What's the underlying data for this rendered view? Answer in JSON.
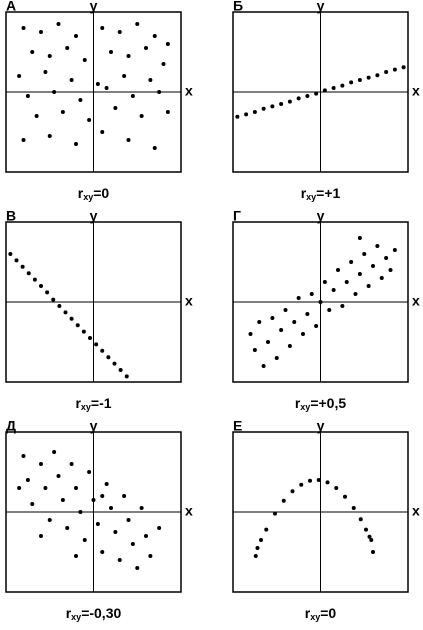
{
  "chart_data": [
    {
      "type": "scatter",
      "label": "А",
      "x_label": "x",
      "y_label": "y",
      "caption": {
        "r": "r",
        "sub": "xy",
        "value": "=0"
      },
      "color": "#000000",
      "xlim": [
        -1,
        1
      ],
      "ylim": [
        -1,
        1
      ],
      "x": [
        -0.8,
        -0.6,
        -0.4,
        -0.2,
        0.1,
        0.3,
        0.5,
        0.7,
        0.85,
        -0.7,
        -0.5,
        -0.3,
        -0.1,
        0.2,
        0.4,
        0.6,
        0.8,
        -0.85,
        -0.55,
        -0.25,
        0.05,
        0.35,
        0.65,
        -0.75,
        -0.45,
        -0.15,
        0.15,
        0.45,
        0.75,
        -0.65,
        -0.35,
        -0.05,
        0.25,
        0.55,
        0.85,
        -0.8,
        -0.5,
        -0.2,
        0.1,
        0.4,
        0.7
      ],
      "y": [
        0.8,
        0.75,
        0.85,
        0.7,
        0.8,
        0.75,
        0.85,
        0.7,
        0.6,
        0.5,
        0.45,
        0.55,
        0.4,
        0.5,
        0.45,
        0.55,
        0.35,
        0.2,
        0.25,
        0.15,
        0.1,
        0.2,
        0.15,
        -0.05,
        0,
        -0.1,
        0.05,
        -0.05,
        0,
        -0.3,
        -0.25,
        -0.35,
        -0.2,
        -0.3,
        -0.25,
        -0.6,
        -0.55,
        -0.65,
        -0.5,
        -0.6,
        -0.7
      ]
    },
    {
      "type": "scatter",
      "label": "Б",
      "x_label": "x",
      "y_label": "y",
      "caption": {
        "r": "r",
        "sub": "xy",
        "value": "=+1"
      },
      "color": "#000000",
      "xlim": [
        -1,
        1
      ],
      "ylim": [
        -1,
        1
      ],
      "x": [
        -0.95,
        -0.85,
        -0.75,
        -0.65,
        -0.55,
        -0.45,
        -0.35,
        -0.25,
        -0.15,
        -0.05,
        0.05,
        0.15,
        0.25,
        0.35,
        0.45,
        0.55,
        0.65,
        0.75,
        0.85,
        0.95
      ],
      "y": [
        -0.31,
        -0.28,
        -0.25,
        -0.21,
        -0.18,
        -0.15,
        -0.12,
        -0.08,
        -0.05,
        -0.02,
        0.02,
        0.05,
        0.08,
        0.12,
        0.15,
        0.18,
        0.21,
        0.25,
        0.28,
        0.31
      ]
    },
    {
      "type": "scatter",
      "label": "В",
      "x_label": "x",
      "y_label": "y",
      "caption": {
        "r": "r",
        "sub": "xy",
        "value": "=-1"
      },
      "color": "#000000",
      "xlim": [
        -1,
        1
      ],
      "ylim": [
        -1,
        1
      ],
      "x": [
        -0.95,
        -0.88,
        -0.81,
        -0.74,
        -0.67,
        -0.6,
        -0.53,
        -0.46,
        -0.39,
        -0.32,
        -0.25,
        -0.18,
        -0.11,
        -0.04,
        0.03,
        0.1,
        0.17,
        0.24,
        0.31,
        0.38
      ],
      "y": [
        0.6,
        0.52,
        0.44,
        0.36,
        0.28,
        0.2,
        0.12,
        0.03,
        -0.05,
        -0.13,
        -0.21,
        -0.29,
        -0.37,
        -0.45,
        -0.53,
        -0.61,
        -0.69,
        -0.77,
        -0.85,
        -0.93
      ]
    },
    {
      "type": "scatter",
      "label": "Г",
      "x_label": "x",
      "y_label": "y",
      "caption": {
        "r": "r",
        "sub": "xy",
        "value": "=+0,5"
      },
      "color": "#000000",
      "xlim": [
        -1,
        1
      ],
      "ylim": [
        -1,
        1
      ],
      "x": [
        -0.8,
        -0.75,
        -0.7,
        -0.6,
        -0.55,
        -0.5,
        -0.45,
        -0.4,
        -0.35,
        -0.3,
        -0.25,
        -0.2,
        -0.15,
        -0.1,
        -0.05,
        0,
        0.05,
        0.1,
        0.15,
        0.2,
        0.25,
        0.3,
        0.35,
        0.4,
        0.45,
        0.5,
        0.55,
        0.6,
        0.65,
        0.7,
        0.75,
        0.8,
        0.85,
        -0.65,
        0.45
      ],
      "y": [
        -0.4,
        -0.6,
        -0.25,
        -0.5,
        -0.2,
        -0.7,
        -0.35,
        -0.1,
        -0.55,
        -0.25,
        0.05,
        -0.4,
        -0.15,
        0.1,
        -0.3,
        0,
        0.25,
        -0.1,
        0.15,
        0.4,
        -0.05,
        0.25,
        0.5,
        0.1,
        0.35,
        0.6,
        0.2,
        0.45,
        0.7,
        0.3,
        0.55,
        0.4,
        0.65,
        -0.8,
        0.8
      ]
    },
    {
      "type": "scatter",
      "label": "Д",
      "x_label": "x",
      "y_label": "y",
      "caption": {
        "r": "r",
        "sub": "xy",
        "value": "=-0,30"
      },
      "color": "#000000",
      "xlim": [
        -1,
        1
      ],
      "ylim": [
        -1,
        1
      ],
      "x": [
        -0.8,
        -0.75,
        -0.7,
        -0.6,
        -0.55,
        -0.5,
        -0.45,
        -0.4,
        -0.35,
        -0.3,
        -0.25,
        -0.2,
        -0.15,
        -0.1,
        -0.05,
        0,
        0.05,
        0.1,
        0.15,
        0.2,
        0.25,
        0.3,
        0.35,
        0.4,
        0.45,
        0.5,
        0.55,
        0.6,
        0.65,
        0.75,
        -0.6,
        -0.85,
        0.1,
        -0.2
      ],
      "y": [
        0.7,
        0.4,
        0.1,
        0.6,
        0.3,
        -0.1,
        0.75,
        0.45,
        0.15,
        -0.2,
        0.6,
        0.3,
        0,
        -0.35,
        0.5,
        0.15,
        -0.15,
        -0.5,
        0.35,
        0.05,
        -0.25,
        -0.6,
        0.2,
        -0.1,
        -0.4,
        -0.7,
        0.05,
        -0.3,
        -0.55,
        -0.2,
        -0.3,
        0.3,
        0.2,
        -0.55
      ]
    },
    {
      "type": "scatter",
      "label": "Е",
      "x_label": "x",
      "y_label": "y",
      "caption": {
        "r": "r",
        "sub": "xy",
        "value": "=0"
      },
      "color": "#000000",
      "xlim": [
        -1,
        1
      ],
      "ylim": [
        -1,
        1
      ],
      "x": [
        -0.74,
        -0.72,
        -0.68,
        -0.62,
        -0.52,
        -0.42,
        -0.32,
        -0.22,
        -0.12,
        -0.02,
        0.08,
        0.18,
        0.28,
        0.38,
        0.46,
        0.52,
        0.56,
        0.58,
        0.6
      ],
      "y": [
        -0.55,
        -0.45,
        -0.35,
        -0.22,
        -0.02,
        0.14,
        0.26,
        0.34,
        0.39,
        0.4,
        0.37,
        0.3,
        0.19,
        0.05,
        -0.09,
        -0.22,
        -0.31,
        -0.35,
        -0.5
      ]
    }
  ]
}
